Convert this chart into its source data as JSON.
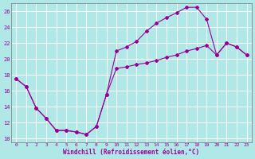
{
  "xlabel": "Windchill (Refroidissement éolien,°C)",
  "background_color": "#b0e8e8",
  "line_color": "#990099",
  "grid_color": "#c8e8e8",
  "xlim": [
    -0.5,
    23.5
  ],
  "ylim": [
    9.5,
    27.0
  ],
  "xticks": [
    0,
    1,
    2,
    3,
    4,
    5,
    6,
    7,
    8,
    9,
    10,
    11,
    12,
    13,
    14,
    15,
    16,
    17,
    18,
    19,
    20,
    21,
    22,
    23
  ],
  "yticks": [
    10,
    12,
    14,
    16,
    18,
    20,
    22,
    24,
    26
  ],
  "line1_x": [
    0,
    1,
    2,
    3,
    4,
    5,
    6,
    7,
    8,
    9,
    10,
    11,
    12,
    13,
    14,
    15,
    16,
    17,
    18,
    19,
    20,
    21,
    22,
    23
  ],
  "line1_y": [
    17.5,
    16.5,
    13.8,
    12.5,
    11.0,
    11.0,
    10.8,
    10.5,
    11.5,
    15.5,
    21.0,
    21.5,
    22.2,
    23.5,
    24.5,
    25.2,
    25.8,
    26.5,
    26.5,
    25.0,
    20.5,
    22.0,
    21.5,
    20.5
  ],
  "line2_x": [
    0,
    1,
    2,
    3,
    4,
    5,
    6,
    7,
    8,
    9,
    10,
    11,
    12,
    13,
    14,
    15,
    16,
    17,
    18,
    19,
    20,
    21,
    22,
    23
  ],
  "line2_y": [
    17.5,
    16.5,
    13.8,
    12.5,
    11.0,
    11.0,
    10.8,
    10.5,
    11.5,
    15.5,
    18.8,
    19.0,
    19.3,
    19.5,
    19.8,
    20.2,
    20.5,
    21.0,
    21.3,
    21.7,
    20.5,
    22.0,
    21.5,
    20.5
  ]
}
